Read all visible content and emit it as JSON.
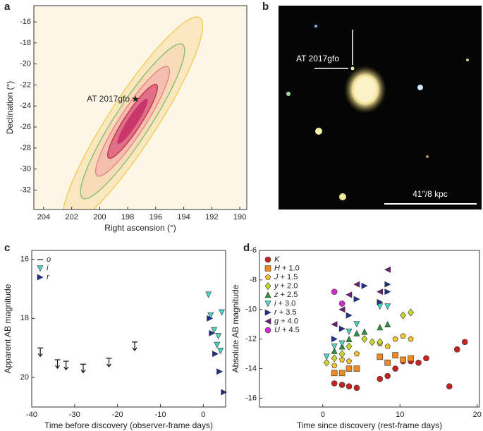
{
  "chart_data": [
    {
      "type": "contour",
      "panel": "a",
      "xlabel": "Right ascension (°)",
      "ylabel": "Declination (°)",
      "xlim": [
        204.7,
        189.5
      ],
      "ylim": [
        -33.85,
        -14.45
      ],
      "xticks": [
        204,
        202,
        200,
        198,
        196,
        194,
        192,
        190
      ],
      "yticks": [
        -32,
        -30,
        -28,
        -26,
        -24,
        -22,
        -20,
        -18,
        -16
      ],
      "annotation": "AT 2017gfo",
      "point": {
        "x": 197.45,
        "y": -23.38
      }
    },
    {
      "type": "image",
      "panel": "b",
      "annotation": "AT 2017gfo",
      "scale_bar": "41″/8 kpc"
    },
    {
      "type": "scatter",
      "panel": "c",
      "xlabel": "Time before discovery (observer-frame days)",
      "ylabel": "Apparent AB magnitude",
      "xlim": [
        -40,
        5.2
      ],
      "ylim": [
        15.7,
        21
      ],
      "y_inverted": true,
      "xticks": [
        -40,
        -30,
        -20,
        -10,
        0
      ],
      "yticks": [
        16,
        18,
        20
      ],
      "series": [
        {
          "name": "o",
          "color": "#111111",
          "marker": "limit",
          "x": [
            -38,
            -34,
            -32,
            -28,
            -22,
            -16
          ],
          "values": [
            19.0,
            19.4,
            19.45,
            19.55,
            19.35,
            18.8
          ]
        },
        {
          "name": "i",
          "color": "#4fd3c4",
          "marker": "triangle-down",
          "x": [
            1.2,
            1.7,
            2.5,
            3.2,
            4.0,
            4.3,
            3.5
          ],
          "values": [
            17.2,
            17.9,
            18.4,
            18.9,
            19.1,
            17.8,
            18.6
          ]
        },
        {
          "name": "r",
          "color": "#1f2f8f",
          "marker": "triangle-right",
          "x": [
            1.5,
            2.0,
            2.8,
            3.8,
            4.8
          ],
          "values": [
            18.0,
            18.5,
            19.2,
            19.8,
            20.5
          ]
        }
      ]
    },
    {
      "type": "scatter",
      "panel": "d",
      "xlabel": "Time since discovery (rest-frame days)",
      "ylabel": "Absolute AB magnitude",
      "xlim": [
        -8.2,
        20.3
      ],
      "ylim": [
        -16.6,
        -6
      ],
      "y_inverted": false,
      "xticks": [
        0,
        10,
        20
      ],
      "yticks": [
        -16,
        -14,
        -12,
        -10,
        -8,
        -6
      ],
      "series": [
        {
          "name": "K",
          "color": "#c0261f",
          "marker": "circle",
          "x": [
            1.5,
            2.5,
            3.4,
            4.4,
            7.4,
            8.4,
            9.4,
            10.4,
            11.4,
            12.4,
            13.4,
            16.4,
            17.4,
            18.4
          ],
          "values": [
            -15.0,
            -15.1,
            -15.2,
            -15.3,
            -14.7,
            -14.5,
            -14.0,
            -13.5,
            -13.5,
            -13.6,
            -13.3,
            -15.2,
            -12.7,
            -12.2
          ]
        },
        {
          "name": "H + 1.0",
          "color": "#f08a1e",
          "marker": "square",
          "x": [
            1.5,
            2.5,
            3.4,
            4.4,
            7.4,
            8.4,
            9.4,
            10.4,
            11.4
          ],
          "values": [
            -14.3,
            -14.3,
            -14.0,
            -14.0,
            -13.2,
            -13.6,
            -13.1,
            -13.4,
            -13.3
          ]
        },
        {
          "name": "J + 1.5",
          "color": "#f6c42a",
          "marker": "pentagon",
          "x": [
            1.5,
            2.5,
            3.4,
            4.4,
            7.4,
            8.4,
            9.4,
            10.4,
            11.4
          ],
          "values": [
            -13.8,
            -13.4,
            -13.5,
            -13.0,
            -12.3,
            -12.5,
            -12.0,
            -11.8,
            -12.0
          ]
        },
        {
          "name": "y + 2.0",
          "color": "#c8d82c",
          "marker": "diamond",
          "x": [
            0.5,
            1.5,
            2.5,
            3.4,
            5.4,
            6.4,
            7.4,
            10.4,
            11.4
          ],
          "values": [
            -13.6,
            -13.3,
            -13.0,
            -12.5,
            -12.0,
            -12.2,
            -12.2,
            -10.4,
            -10.2
          ]
        },
        {
          "name": "z + 2.5",
          "color": "#2f8f3a",
          "marker": "triangle-up",
          "x": [
            1.5,
            2.5,
            3.4,
            4.4,
            5.4,
            7.4,
            8.4
          ],
          "values": [
            -12.8,
            -12.5,
            -12.0,
            -11.6,
            -11.5,
            -11.2,
            -11.0
          ]
        },
        {
          "name": "i + 3.0",
          "color": "#4fd3c4",
          "marker": "triangle-down",
          "x": [
            0.5,
            1.5,
            2.5,
            3.4,
            4.4,
            7.4,
            8.4
          ],
          "values": [
            -13.2,
            -12.5,
            -12.3,
            -11.5,
            -11.0,
            -9.8,
            -9.8
          ]
        },
        {
          "name": "r + 3.5",
          "color": "#1f2f8f",
          "marker": "triangle-right",
          "x": [
            1.5,
            2.5,
            3.4,
            4.4,
            5.4,
            7.4,
            8.4,
            8.4
          ],
          "values": [
            -12.0,
            -11.3,
            -10.4,
            -9.3,
            -8.4,
            -9.5,
            -8.8,
            -8.3
          ]
        },
        {
          "name": "g + 4.0",
          "color": "#6a1f7a",
          "marker": "triangle-left",
          "x": [
            1.5,
            2.5,
            3.4,
            4.4,
            7.4,
            8.4
          ],
          "values": [
            -11.0,
            -10.0,
            -9.0,
            -8.3,
            -8.8,
            -7.3
          ]
        },
        {
          "name": "U + 4.5",
          "color": "#d02ad0",
          "marker": "circle",
          "x": [
            1.5,
            2.5
          ],
          "values": [
            -8.8,
            -9.6
          ]
        }
      ]
    }
  ]
}
